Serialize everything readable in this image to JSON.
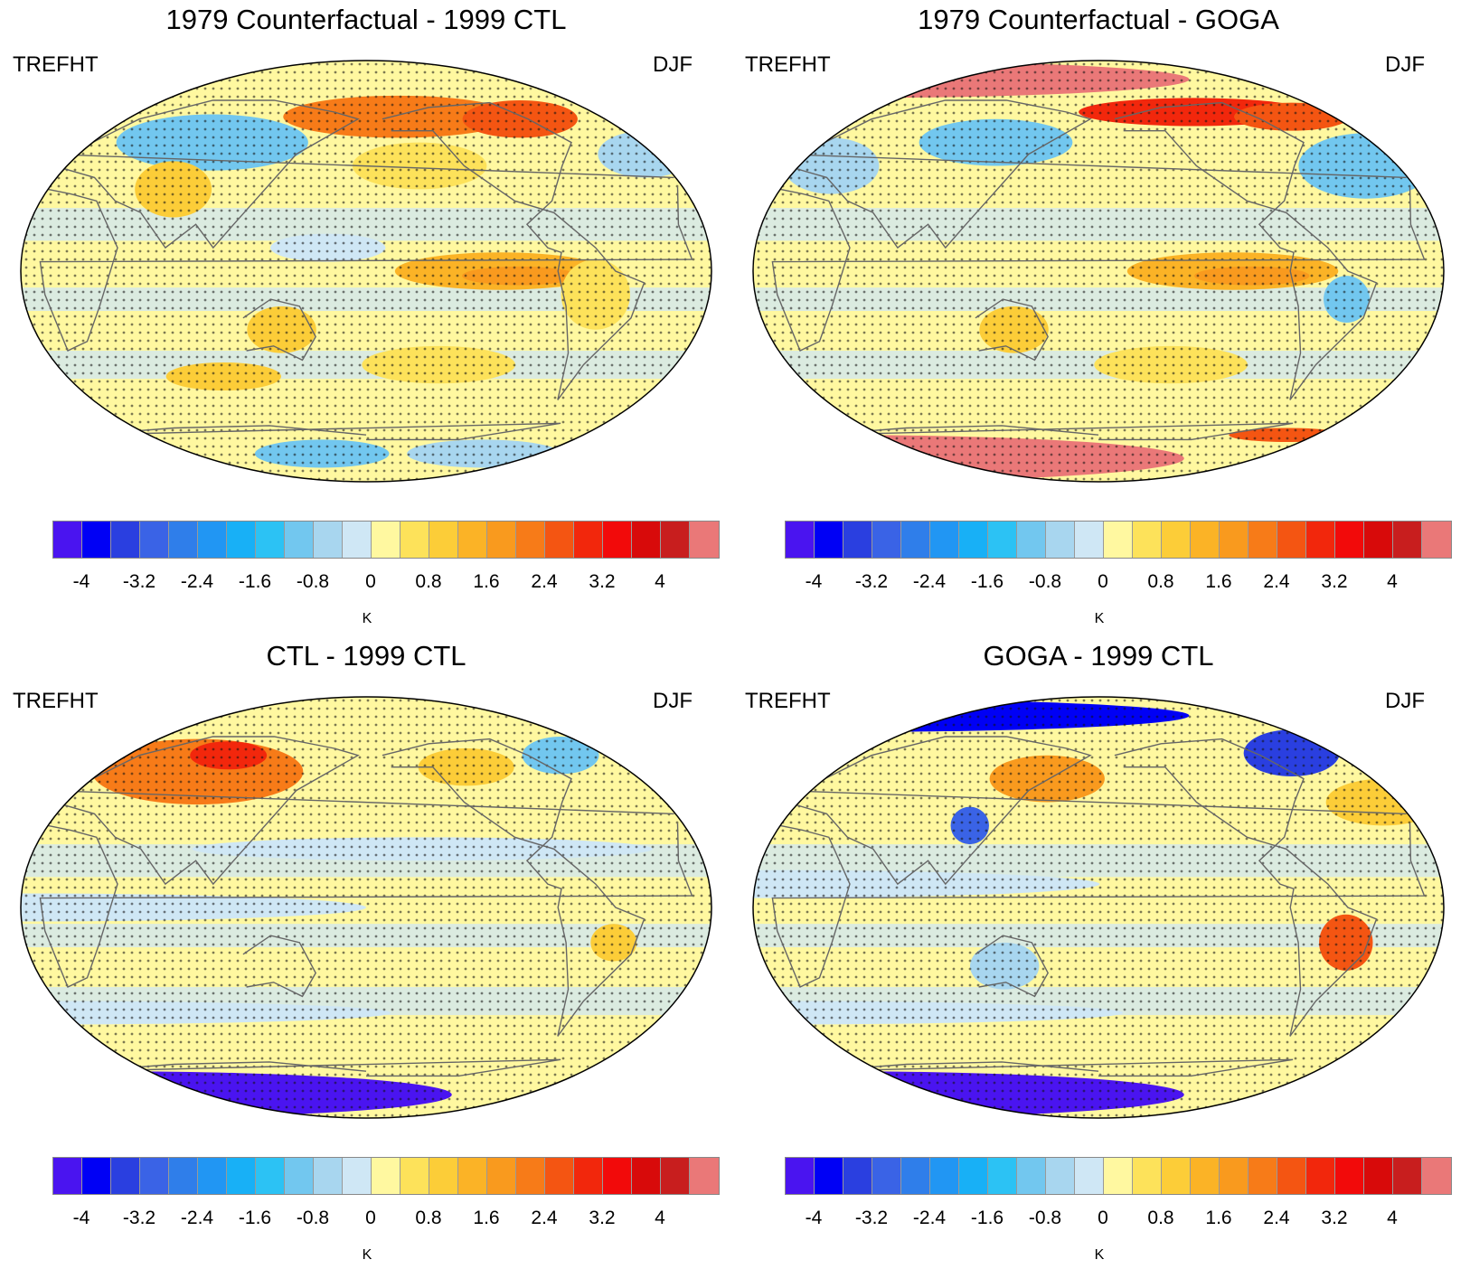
{
  "colorbar": {
    "colors": [
      "#4a14f0",
      "#0000f5",
      "#2a3fe0",
      "#3a63e6",
      "#2f7eea",
      "#2196f3",
      "#18b0f6",
      "#2cc2f4",
      "#72c7ef",
      "#a8d6ef",
      "#cfe7f5",
      "#fff8a0",
      "#fde25a",
      "#fccd38",
      "#fbb326",
      "#f99a1e",
      "#f77b18",
      "#f45512",
      "#f2270c",
      "#f20a0a",
      "#d80a0a",
      "#c81e1e",
      "#ea7878"
    ],
    "ticks": [
      "-4",
      "-3.2",
      "-2.4",
      "-1.6",
      "-0.8",
      "0",
      "0.8",
      "1.6",
      "2.4",
      "3.2",
      "4"
    ],
    "unit": "K"
  },
  "panels": [
    {
      "title": "1979 Counterfactual - 1999 CTL",
      "variable": "TREFHT",
      "season": "DJF",
      "features": [
        {
          "lon": -160,
          "lat": 66,
          "rx": 60,
          "ry": 9,
          "color": "#f77b18"
        },
        {
          "lon": -85,
          "lat": 65,
          "rx": 30,
          "ry": 8,
          "color": "#f45512"
        },
        {
          "lon": -150,
          "lat": 45,
          "rx": 35,
          "ry": 10,
          "color": "#fde25a"
        },
        {
          "lon": -20,
          "lat": 50,
          "rx": 25,
          "ry": 10,
          "color": "#a8d6ef"
        },
        {
          "lon": 90,
          "lat": 55,
          "rx": 50,
          "ry": 12,
          "color": "#72c7ef"
        },
        {
          "lon": 75,
          "lat": 35,
          "rx": 20,
          "ry": 12,
          "color": "#fccd38"
        },
        {
          "lon": -110,
          "lat": 0,
          "rx": 55,
          "ry": 8,
          "color": "#fbb326"
        },
        {
          "lon": -100,
          "lat": -2,
          "rx": 30,
          "ry": 4,
          "color": "#f99a1e"
        },
        {
          "lon": 160,
          "lat": 10,
          "rx": 30,
          "ry": 6,
          "color": "#cfe7f5"
        },
        {
          "lon": -60,
          "lat": -10,
          "rx": 18,
          "ry": 15,
          "color": "#fde25a"
        },
        {
          "lon": 135,
          "lat": -25,
          "rx": 18,
          "ry": 10,
          "color": "#fccd38"
        },
        {
          "lon": -140,
          "lat": -40,
          "rx": 40,
          "ry": 8,
          "color": "#fde25a"
        },
        {
          "lon": 100,
          "lat": -45,
          "rx": 30,
          "ry": 6,
          "color": "#fccd38"
        },
        {
          "lon": 150,
          "lat": -78,
          "rx": 35,
          "ry": 6,
          "color": "#72c7ef"
        },
        {
          "lon": -100,
          "lat": -78,
          "rx": 40,
          "ry": 6,
          "color": "#a8d6ef"
        }
      ]
    },
    {
      "title": "1979 Counterfactual - GOGA",
      "variable": "TREFHT",
      "season": "DJF",
      "features": [
        {
          "lon": 0,
          "lat": 82,
          "rx": 180,
          "ry": 8,
          "color": "#ea7878"
        },
        {
          "lon": -120,
          "lat": 68,
          "rx": 60,
          "ry": 6,
          "color": "#f2270c"
        },
        {
          "lon": -60,
          "lat": 66,
          "rx": 30,
          "ry": 6,
          "color": "#f45512"
        },
        {
          "lon": 120,
          "lat": 55,
          "rx": 40,
          "ry": 10,
          "color": "#72c7ef"
        },
        {
          "lon": -30,
          "lat": 45,
          "rx": 35,
          "ry": 14,
          "color": "#72c7ef"
        },
        {
          "lon": 30,
          "lat": 45,
          "rx": 25,
          "ry": 12,
          "color": "#a8d6ef"
        },
        {
          "lon": -110,
          "lat": 0,
          "rx": 55,
          "ry": 8,
          "color": "#fbb326"
        },
        {
          "lon": -100,
          "lat": -2,
          "rx": 30,
          "ry": 4,
          "color": "#f99a1e"
        },
        {
          "lon": -50,
          "lat": -12,
          "rx": 12,
          "ry": 10,
          "color": "#72c7ef"
        },
        {
          "lon": 135,
          "lat": -25,
          "rx": 18,
          "ry": 10,
          "color": "#fccd38"
        },
        {
          "lon": -140,
          "lat": -40,
          "rx": 40,
          "ry": 8,
          "color": "#fde25a"
        },
        {
          "lon": 0,
          "lat": -80,
          "rx": 180,
          "ry": 10,
          "color": "#ea7878"
        },
        {
          "lon": -60,
          "lat": -70,
          "rx": 30,
          "ry": 3,
          "color": "#f45512"
        }
      ]
    },
    {
      "title": "CTL - 1999 CTL",
      "variable": "TREFHT",
      "season": "DJF",
      "features": [
        {
          "lon": 80,
          "lat": 58,
          "rx": 55,
          "ry": 14,
          "color": "#f77b18"
        },
        {
          "lon": 95,
          "lat": 65,
          "rx": 20,
          "ry": 6,
          "color": "#f2270c"
        },
        {
          "lon": -120,
          "lat": 60,
          "rx": 25,
          "ry": 8,
          "color": "#fccd38"
        },
        {
          "lon": -60,
          "lat": 65,
          "rx": 20,
          "ry": 8,
          "color": "#72c7ef"
        },
        {
          "lon": -150,
          "lat": 25,
          "rx": 120,
          "ry": 5,
          "color": "#cfe7f5"
        },
        {
          "lon": 0,
          "lat": 0,
          "rx": 180,
          "ry": 6,
          "color": "#cfe7f5"
        },
        {
          "lon": -50,
          "lat": -15,
          "rx": 12,
          "ry": 8,
          "color": "#fccd38"
        },
        {
          "lon": 0,
          "lat": -45,
          "rx": 180,
          "ry": 5,
          "color": "#cfe7f5"
        },
        {
          "lon": 0,
          "lat": -80,
          "rx": 180,
          "ry": 10,
          "color": "#4a14f0"
        }
      ]
    },
    {
      "title": "GOGA - 1999 CTL",
      "variable": "TREFHT",
      "season": "DJF",
      "features": [
        {
          "lon": 0,
          "lat": 82,
          "rx": 180,
          "ry": 7,
          "color": "#0000f5"
        },
        {
          "lon": -60,
          "lat": 66,
          "rx": 25,
          "ry": 10,
          "color": "#2a3fe0"
        },
        {
          "lon": 150,
          "lat": 55,
          "rx": 30,
          "ry": 10,
          "color": "#f99a1e"
        },
        {
          "lon": 110,
          "lat": 35,
          "rx": 10,
          "ry": 8,
          "color": "#3a63e6"
        },
        {
          "lon": -20,
          "lat": 45,
          "rx": 30,
          "ry": 10,
          "color": "#fccd38"
        },
        {
          "lon": 0,
          "lat": 10,
          "rx": 180,
          "ry": 6,
          "color": "#cfe7f5"
        },
        {
          "lon": -50,
          "lat": -15,
          "rx": 14,
          "ry": 12,
          "color": "#f45512"
        },
        {
          "lon": 130,
          "lat": -25,
          "rx": 18,
          "ry": 10,
          "color": "#a8d6ef"
        },
        {
          "lon": 0,
          "lat": -45,
          "rx": 180,
          "ry": 5,
          "color": "#cfe7f5"
        },
        {
          "lon": 0,
          "lat": -80,
          "rx": 180,
          "ry": 10,
          "color": "#4a14f0"
        }
      ]
    }
  ]
}
